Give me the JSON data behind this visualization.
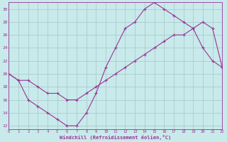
{
  "xlabel": "Windchill (Refroidissement éolien,°C)",
  "bg_color": "#c8eaea",
  "grid_color": "#aacccc",
  "line_color": "#993399",
  "line1_x": [
    0,
    1,
    2,
    3,
    4,
    5,
    6,
    7,
    8,
    9,
    10,
    11,
    12,
    13,
    14,
    15,
    16,
    17,
    18,
    19,
    20,
    21,
    22
  ],
  "line1_y": [
    20,
    19,
    16,
    15,
    14,
    13,
    12,
    12,
    14,
    17,
    21,
    24,
    27,
    28,
    30,
    31,
    30,
    29,
    28,
    27,
    24,
    22,
    21
  ],
  "line2_x": [
    0,
    1,
    2,
    3,
    4,
    5,
    6,
    7,
    8,
    9,
    10,
    11,
    12,
    13,
    14,
    15,
    16,
    17,
    18,
    19,
    20,
    21,
    22
  ],
  "line2_y": [
    20,
    19,
    19,
    18,
    17,
    17,
    16,
    16,
    17,
    18,
    19,
    20,
    21,
    22,
    23,
    24,
    25,
    26,
    26,
    27,
    28,
    27,
    21
  ],
  "xlim": [
    0,
    22
  ],
  "ylim": [
    11.5,
    31
  ],
  "yticks": [
    12,
    14,
    16,
    18,
    20,
    22,
    24,
    26,
    28,
    30
  ],
  "xticks": [
    0,
    1,
    2,
    3,
    4,
    5,
    6,
    7,
    8,
    9,
    10,
    11,
    12,
    13,
    14,
    15,
    16,
    17,
    18,
    19,
    20,
    21,
    22
  ]
}
